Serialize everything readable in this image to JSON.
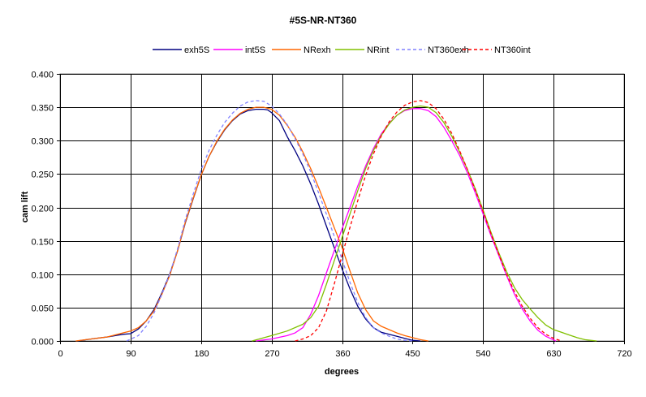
{
  "chart_data": {
    "type": "line",
    "title": "#5S-NR-NT360",
    "xlabel": "degrees",
    "ylabel": "cam lift",
    "xlim": [
      0,
      720
    ],
    "ylim": [
      0,
      0.4
    ],
    "xticks": [
      "0",
      "90",
      "180",
      "270",
      "360",
      "450",
      "540",
      "630",
      "720"
    ],
    "yticks": [
      "0.000",
      "0.050",
      "0.100",
      "0.150",
      "0.200",
      "0.250",
      "0.300",
      "0.350",
      "0.400"
    ],
    "grid": true,
    "legend_position": "top",
    "series": [
      {
        "name": "exh5S",
        "color": "#000080",
        "dash": "solid",
        "x": [
          22,
          40,
          60,
          80,
          90,
          100,
          110,
          120,
          130,
          140,
          150,
          160,
          170,
          180,
          190,
          200,
          210,
          220,
          230,
          240,
          250,
          260,
          265,
          270,
          280,
          290,
          300,
          310,
          320,
          330,
          340,
          350,
          360,
          370,
          380,
          390,
          400,
          410,
          420,
          430,
          440,
          450,
          460
        ],
        "y": [
          0,
          0.003,
          0.006,
          0.01,
          0.011,
          0.018,
          0.03,
          0.047,
          0.072,
          0.1,
          0.135,
          0.177,
          0.213,
          0.248,
          0.276,
          0.298,
          0.316,
          0.33,
          0.34,
          0.345,
          0.347,
          0.347,
          0.346,
          0.342,
          0.33,
          0.306,
          0.285,
          0.262,
          0.235,
          0.205,
          0.172,
          0.14,
          0.108,
          0.078,
          0.052,
          0.033,
          0.02,
          0.013,
          0.01,
          0.007,
          0.004,
          0.001,
          0
        ]
      },
      {
        "name": "int5S",
        "color": "#FF00FF",
        "dash": "solid",
        "x": [
          250,
          270,
          290,
          300,
          310,
          320,
          330,
          340,
          350,
          360,
          370,
          380,
          390,
          400,
          410,
          420,
          430,
          440,
          450,
          460,
          470,
          480,
          490,
          500,
          510,
          520,
          530,
          540,
          550,
          560,
          570,
          580,
          590,
          600,
          610,
          620,
          633
        ],
        "y": [
          0,
          0.003,
          0.008,
          0.012,
          0.02,
          0.04,
          0.068,
          0.102,
          0.135,
          0.168,
          0.2,
          0.232,
          0.262,
          0.288,
          0.31,
          0.326,
          0.338,
          0.345,
          0.348,
          0.348,
          0.345,
          0.336,
          0.32,
          0.3,
          0.278,
          0.252,
          0.222,
          0.19,
          0.158,
          0.128,
          0.098,
          0.07,
          0.048,
          0.03,
          0.016,
          0.007,
          0
        ]
      },
      {
        "name": "NRexh",
        "color": "#FF6600",
        "dash": "solid",
        "x": [
          20,
          40,
          60,
          80,
          90,
          100,
          110,
          120,
          130,
          140,
          150,
          160,
          170,
          180,
          190,
          200,
          210,
          220,
          230,
          240,
          250,
          260,
          270,
          280,
          290,
          300,
          310,
          320,
          330,
          340,
          350,
          360,
          370,
          380,
          390,
          400,
          410,
          420,
          430,
          440,
          450,
          460,
          470
        ],
        "y": [
          0,
          0.003,
          0.006,
          0.012,
          0.015,
          0.02,
          0.03,
          0.045,
          0.07,
          0.098,
          0.135,
          0.178,
          0.214,
          0.248,
          0.276,
          0.299,
          0.317,
          0.331,
          0.341,
          0.347,
          0.35,
          0.35,
          0.347,
          0.338,
          0.323,
          0.305,
          0.283,
          0.258,
          0.23,
          0.2,
          0.17,
          0.14,
          0.105,
          0.072,
          0.047,
          0.03,
          0.022,
          0.017,
          0.012,
          0.008,
          0.005,
          0.002,
          0
        ]
      },
      {
        "name": "NRint",
        "color": "#80C000",
        "dash": "solid",
        "x": [
          245,
          270,
          290,
          310,
          320,
          330,
          340,
          350,
          360,
          370,
          380,
          390,
          400,
          410,
          420,
          430,
          440,
          450,
          460,
          470,
          480,
          490,
          500,
          510,
          520,
          530,
          540,
          550,
          560,
          570,
          580,
          590,
          600,
          610,
          620,
          630,
          640,
          650,
          660,
          670,
          685
        ],
        "y": [
          0,
          0.008,
          0.015,
          0.025,
          0.035,
          0.052,
          0.085,
          0.12,
          0.155,
          0.19,
          0.225,
          0.258,
          0.285,
          0.308,
          0.325,
          0.338,
          0.346,
          0.35,
          0.352,
          0.35,
          0.342,
          0.327,
          0.307,
          0.283,
          0.257,
          0.228,
          0.196,
          0.163,
          0.132,
          0.104,
          0.08,
          0.062,
          0.048,
          0.035,
          0.024,
          0.017,
          0.013,
          0.009,
          0.005,
          0.002,
          0
        ]
      },
      {
        "name": "NT360exh",
        "color": "#8080FF",
        "dash": "dashed",
        "x": [
          85,
          100,
          110,
          120,
          130,
          140,
          150,
          160,
          170,
          180,
          190,
          200,
          210,
          220,
          230,
          240,
          250,
          260,
          270,
          280,
          290,
          300,
          310,
          320,
          330,
          340,
          350,
          360,
          370,
          380,
          390,
          400,
          410,
          420,
          430,
          440,
          450
        ],
        "y": [
          0,
          0.008,
          0.022,
          0.042,
          0.07,
          0.1,
          0.138,
          0.182,
          0.22,
          0.256,
          0.285,
          0.308,
          0.327,
          0.341,
          0.352,
          0.358,
          0.36,
          0.359,
          0.352,
          0.34,
          0.324,
          0.303,
          0.28,
          0.253,
          0.222,
          0.19,
          0.157,
          0.122,
          0.088,
          0.058,
          0.035,
          0.02,
          0.012,
          0.007,
          0.003,
          0.001,
          0
        ]
      },
      {
        "name": "NT360int",
        "color": "#FF0000",
        "dash": "dashed",
        "x": [
          300,
          310,
          320,
          330,
          340,
          350,
          360,
          370,
          380,
          390,
          400,
          410,
          420,
          430,
          440,
          450,
          460,
          470,
          480,
          490,
          500,
          510,
          520,
          530,
          540,
          550,
          560,
          570,
          580,
          590,
          600,
          610,
          620,
          630,
          640
        ],
        "y": [
          0,
          0.003,
          0.008,
          0.02,
          0.045,
          0.085,
          0.128,
          0.17,
          0.21,
          0.248,
          0.28,
          0.307,
          0.328,
          0.343,
          0.353,
          0.358,
          0.36,
          0.357,
          0.348,
          0.332,
          0.311,
          0.285,
          0.257,
          0.226,
          0.194,
          0.161,
          0.13,
          0.1,
          0.074,
          0.052,
          0.034,
          0.02,
          0.01,
          0.004,
          0
        ]
      }
    ]
  }
}
